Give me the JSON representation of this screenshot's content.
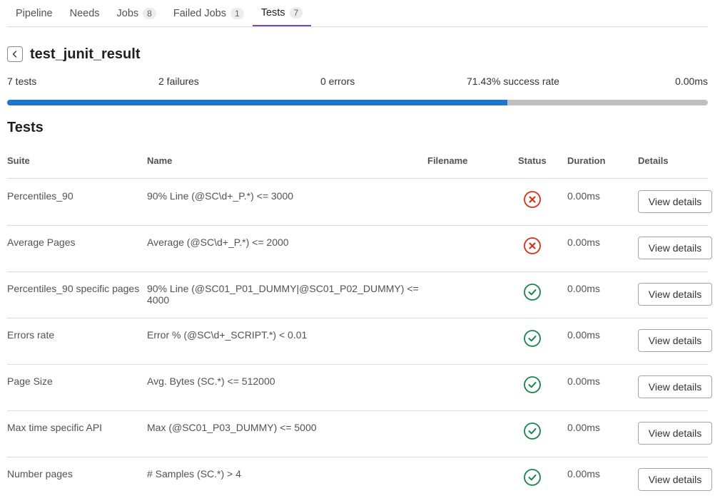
{
  "tabs": [
    {
      "label": "Pipeline",
      "count": null
    },
    {
      "label": "Needs",
      "count": null
    },
    {
      "label": "Jobs",
      "count": "8"
    },
    {
      "label": "Failed Jobs",
      "count": "1"
    },
    {
      "label": "Tests",
      "count": "7",
      "active": true
    }
  ],
  "header": {
    "title": "test_junit_result"
  },
  "summary": {
    "tests": "7 tests",
    "failures": "2 failures",
    "errors": "0 errors",
    "success_rate": "71.43% success rate",
    "duration": "0.00ms",
    "progress_fraction": 0.7143
  },
  "section_title": "Tests",
  "table": {
    "headers": {
      "suite": "Suite",
      "name": "Name",
      "filename": "Filename",
      "status": "Status",
      "duration": "Duration",
      "details": "Details"
    },
    "rows": [
      {
        "suite": "Percentiles_90",
        "name": "90% Line (@SC\\d+_P.*) <= 3000",
        "filename": "",
        "status": "failed",
        "duration": "0.00ms",
        "action": "View details"
      },
      {
        "suite": "Average Pages",
        "name": "Average (@SC\\d+_P.*) <= 2000",
        "filename": "",
        "status": "failed",
        "duration": "0.00ms",
        "action": "View details"
      },
      {
        "suite": "Percentiles_90 specific pages",
        "name": "90% Line (@SC01_P01_DUMMY|@SC01_P02_DUMMY) <= 4000",
        "filename": "",
        "status": "success",
        "duration": "0.00ms",
        "action": "View details"
      },
      {
        "suite": "Errors rate",
        "name": "Error % (@SC\\d+_SCRIPT.*) < 0.01",
        "filename": "",
        "status": "success",
        "duration": "0.00ms",
        "action": "View details"
      },
      {
        "suite": "Page Size",
        "name": "Avg. Bytes (SC.*) <= 512000",
        "filename": "",
        "status": "success",
        "duration": "0.00ms",
        "action": "View details"
      },
      {
        "suite": "Max time specific API",
        "name": "Max (@SC01_P03_DUMMY) <= 5000",
        "filename": "",
        "status": "success",
        "duration": "0.00ms",
        "action": "View details"
      },
      {
        "suite": "Number pages",
        "name": "# Samples (SC.*) > 4",
        "filename": "",
        "status": "success",
        "duration": "0.00ms",
        "action": "View details"
      }
    ]
  },
  "icons": {
    "back": "chevron-left-icon",
    "failed": "status-failed-icon",
    "success": "status-success-icon"
  },
  "colors": {
    "accent": "#6e49cb",
    "progress": "#1f75cb",
    "progress_track": "#bfbfc3",
    "failed": "#dd2b0e",
    "success": "#108548"
  }
}
